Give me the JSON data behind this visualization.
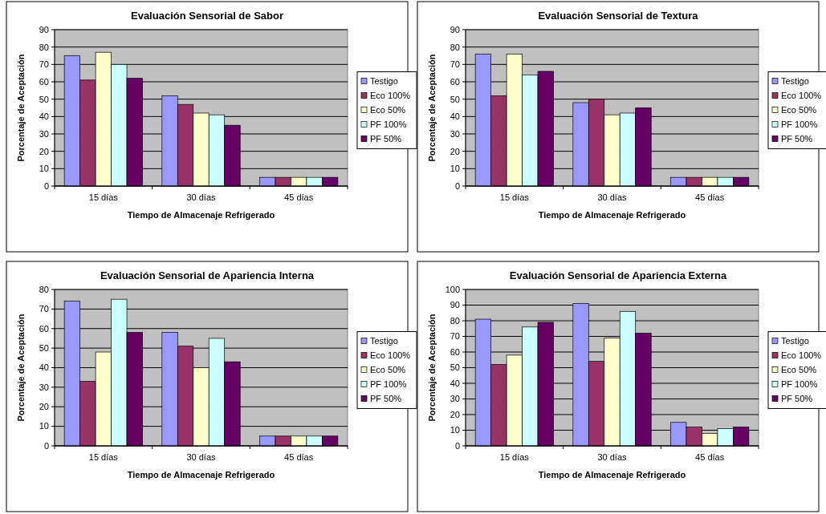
{
  "chart_data": [
    {
      "type": "bar",
      "title": "Evaluación Sensorial de Sabor",
      "xlabel": "Tiempo de Almacenaje Refrigerado",
      "ylabel": "Porcentaje de Aceptación",
      "categories": [
        "15 días",
        "30 días",
        "45 días"
      ],
      "ylim": [
        0,
        90
      ],
      "yticks": [
        0,
        10,
        20,
        30,
        40,
        50,
        60,
        70,
        80,
        90
      ],
      "grid": "y",
      "legend": "right",
      "series": [
        {
          "name": "Testigo",
          "color": "#9999ff",
          "values": [
            75,
            52,
            5
          ]
        },
        {
          "name": "Eco 100%",
          "color": "#993366",
          "values": [
            61,
            47,
            5
          ]
        },
        {
          "name": "Eco 50%",
          "color": "#ffffcc",
          "values": [
            77,
            42,
            5
          ]
        },
        {
          "name": "PF 100%",
          "color": "#ccffff",
          "values": [
            70,
            41,
            5
          ]
        },
        {
          "name": "PF 50%",
          "color": "#660066",
          "values": [
            62,
            35,
            5
          ]
        }
      ]
    },
    {
      "type": "bar",
      "title": "Evaluación Sensorial de Textura",
      "xlabel": "Tiempo de Almacenaje Refrigerado",
      "ylabel": "Porcentaje de Aceptación",
      "categories": [
        "15 días",
        "30 días",
        "45 días"
      ],
      "ylim": [
        0,
        90
      ],
      "yticks": [
        0,
        10,
        20,
        30,
        40,
        50,
        60,
        70,
        80,
        90
      ],
      "grid": "y",
      "legend": "right",
      "series": [
        {
          "name": "Testigo",
          "color": "#9999ff",
          "values": [
            76,
            48,
            5
          ]
        },
        {
          "name": "Eco 100%",
          "color": "#993366",
          "values": [
            52,
            50,
            5
          ]
        },
        {
          "name": "Eco 50%",
          "color": "#ffffcc",
          "values": [
            76,
            41,
            5
          ]
        },
        {
          "name": "PF 100%",
          "color": "#ccffff",
          "values": [
            64,
            42,
            5
          ]
        },
        {
          "name": "PF 50%",
          "color": "#660066",
          "values": [
            66,
            45,
            5
          ]
        }
      ]
    },
    {
      "type": "bar",
      "title": "Evaluación Sensorial de Apariencia Interna",
      "xlabel": "Tiempo de Almacenaje Refrigerado",
      "ylabel": "Porcentaje de Aceptación",
      "categories": [
        "15 días",
        "30 días",
        "45 días"
      ],
      "ylim": [
        0,
        80
      ],
      "yticks": [
        0,
        10,
        20,
        30,
        40,
        50,
        60,
        70,
        80
      ],
      "grid": "y",
      "legend": "right",
      "series": [
        {
          "name": "Testigo",
          "color": "#9999ff",
          "values": [
            74,
            58,
            5
          ]
        },
        {
          "name": "Eco 100%",
          "color": "#993366",
          "values": [
            33,
            51,
            5
          ]
        },
        {
          "name": "Eco 50%",
          "color": "#ffffcc",
          "values": [
            48,
            40,
            5
          ]
        },
        {
          "name": "PF 100%",
          "color": "#ccffff",
          "values": [
            75,
            55,
            5
          ]
        },
        {
          "name": "PF 50%",
          "color": "#660066",
          "values": [
            58,
            43,
            5
          ]
        }
      ]
    },
    {
      "type": "bar",
      "title": "Evaluación Sensorial de Apariencia Externa",
      "xlabel": "Tiempo de Almacenaje Refrigerado",
      "ylabel": "Porcentaje de Aceptación",
      "categories": [
        "15 días",
        "30 días",
        "45 días"
      ],
      "ylim": [
        0,
        100
      ],
      "yticks": [
        0,
        10,
        20,
        30,
        40,
        50,
        60,
        70,
        80,
        90,
        100
      ],
      "grid": "y",
      "legend": "right",
      "series": [
        {
          "name": "Testigo",
          "color": "#9999ff",
          "values": [
            81,
            91,
            15
          ]
        },
        {
          "name": "Eco 100%",
          "color": "#993366",
          "values": [
            52,
            54,
            12
          ]
        },
        {
          "name": "Eco 50%",
          "color": "#ffffcc",
          "values": [
            58,
            69,
            8
          ]
        },
        {
          "name": "PF 100%",
          "color": "#ccffff",
          "values": [
            76,
            86,
            11
          ]
        },
        {
          "name": "PF 50%",
          "color": "#660066",
          "values": [
            79,
            72,
            12
          ]
        }
      ]
    }
  ]
}
